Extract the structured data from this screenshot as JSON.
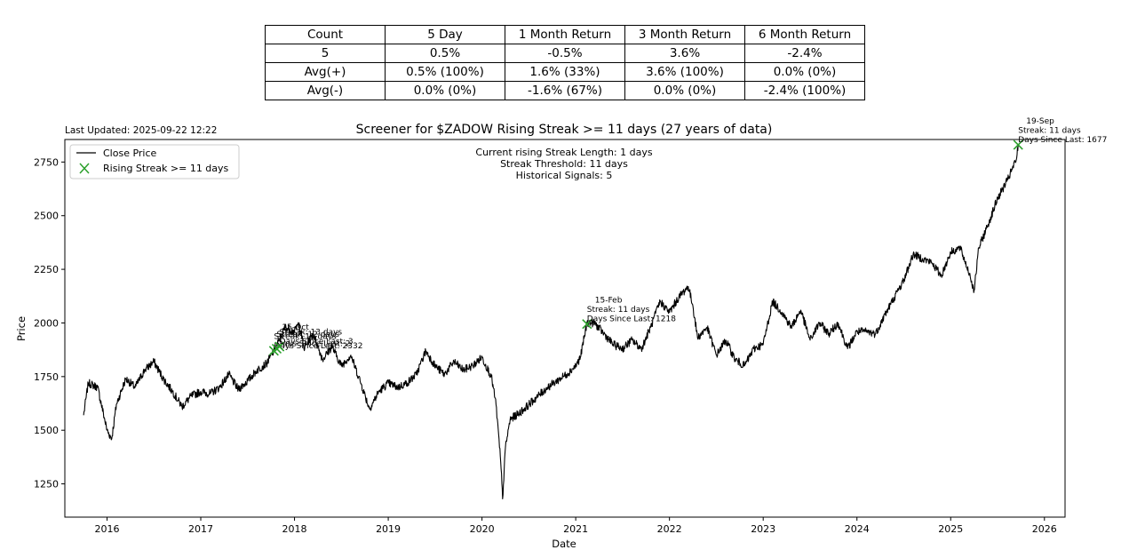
{
  "table": {
    "headers": [
      "Count",
      "5 Day",
      "1 Month Return",
      "3 Month Return",
      "6 Month Return"
    ],
    "rows": [
      [
        "5",
        "0.5%",
        "-0.5%",
        "3.6%",
        "-2.4%"
      ],
      [
        "Avg(+)",
        "0.5% (100%)",
        "1.6% (33%)",
        "3.6% (100%)",
        "0.0% (0%)"
      ],
      [
        "Avg(-)",
        "0.0% (0%)",
        "-1.6% (67%)",
        "0.0% (0%)",
        "-2.4% (100%)"
      ]
    ]
  },
  "last_updated": "Last Updated: 2025-09-22 12:22",
  "chart_data": {
    "type": "line",
    "title": "Screener for $ZADOW Rising Streak >= 11 days (27 years of data)",
    "xlabel": "Date",
    "ylabel": "Price",
    "xlim": [
      2015.55,
      2026.22
    ],
    "ylim": [
      1095,
      2855
    ],
    "x_ticks": [
      "2016",
      "2017",
      "2018",
      "2019",
      "2020",
      "2021",
      "2022",
      "2023",
      "2024",
      "2025",
      "2026"
    ],
    "y_ticks": [
      1250,
      1500,
      1750,
      2000,
      2250,
      2500,
      2750
    ],
    "legend": {
      "placement": "upper-left",
      "entries": [
        "Close Price",
        "Rising Streak >= 11 days"
      ]
    },
    "info_box": [
      "Current rising Streak Length: 1 days",
      "Streak Threshold: 11 days",
      "Historical Signals: 5"
    ],
    "colors": {
      "line": "#000000",
      "signal": "#2ca02c"
    },
    "series": [
      {
        "name": "Close Price",
        "x": [
          2015.75,
          2015.8,
          2015.9,
          2016.0,
          2016.05,
          2016.1,
          2016.2,
          2016.3,
          2016.4,
          2016.5,
          2016.6,
          2016.7,
          2016.8,
          2016.9,
          2017.0,
          2017.1,
          2017.2,
          2017.3,
          2017.4,
          2017.5,
          2017.6,
          2017.7,
          2017.78,
          2017.85,
          2017.9,
          2018.0,
          2018.05,
          2018.1,
          2018.2,
          2018.3,
          2018.4,
          2018.5,
          2018.6,
          2018.7,
          2018.8,
          2018.9,
          2019.0,
          2019.1,
          2019.2,
          2019.3,
          2019.4,
          2019.5,
          2019.6,
          2019.7,
          2019.8,
          2019.9,
          2020.0,
          2020.1,
          2020.15,
          2020.2,
          2020.22,
          2020.25,
          2020.3,
          2020.4,
          2020.5,
          2020.6,
          2020.7,
          2020.8,
          2020.9,
          2021.0,
          2021.05,
          2021.12,
          2021.2,
          2021.3,
          2021.4,
          2021.5,
          2021.6,
          2021.7,
          2021.8,
          2021.9,
          2022.0,
          2022.1,
          2022.2,
          2022.25,
          2022.3,
          2022.4,
          2022.5,
          2022.6,
          2022.7,
          2022.8,
          2022.9,
          2023.0,
          2023.1,
          2023.2,
          2023.3,
          2023.4,
          2023.5,
          2023.6,
          2023.7,
          2023.8,
          2023.9,
          2024.0,
          2024.1,
          2024.2,
          2024.3,
          2024.4,
          2024.5,
          2024.6,
          2024.7,
          2024.8,
          2024.9,
          2025.0,
          2025.1,
          2025.2,
          2025.25,
          2025.3,
          2025.4,
          2025.5,
          2025.6,
          2025.7,
          2025.72
        ],
        "values": [
          1570,
          1720,
          1700,
          1500,
          1460,
          1620,
          1740,
          1700,
          1780,
          1820,
          1740,
          1680,
          1610,
          1660,
          1680,
          1670,
          1700,
          1760,
          1690,
          1730,
          1780,
          1810,
          1870,
          1930,
          1980,
          1960,
          2000,
          1880,
          1950,
          1830,
          1890,
          1800,
          1850,
          1730,
          1600,
          1680,
          1720,
          1700,
          1720,
          1760,
          1870,
          1800,
          1760,
          1820,
          1780,
          1800,
          1840,
          1750,
          1620,
          1350,
          1180,
          1420,
          1550,
          1580,
          1620,
          1660,
          1700,
          1730,
          1760,
          1800,
          1840,
          2000,
          2000,
          1950,
          1900,
          1880,
          1920,
          1880,
          1980,
          2100,
          2050,
          2120,
          2170,
          2080,
          1930,
          1980,
          1850,
          1920,
          1830,
          1800,
          1880,
          1900,
          2100,
          2050,
          1980,
          2060,
          1920,
          2000,
          1950,
          2000,
          1880,
          1960,
          1960,
          1950,
          2040,
          2120,
          2200,
          2320,
          2300,
          2280,
          2220,
          2330,
          2350,
          2230,
          2150,
          2350,
          2460,
          2580,
          2660,
          2760,
          2830
        ]
      }
    ],
    "signals": [
      {
        "x": 2017.78,
        "y": 1870,
        "label": [
          "15-Oct",
          "Streak: 11 days",
          "Days Since Last: 2332"
        ]
      },
      {
        "x": 2017.81,
        "y": 1880,
        "label": [
          "",
          "Streak: 12 days",
          "Days Since Last: 2"
        ]
      },
      {
        "x": 2017.84,
        "y": 1890,
        "label": [
          "",
          "Streak: 13 days",
          "Days Since Last: 3"
        ]
      },
      {
        "x": 2021.12,
        "y": 1995,
        "label": [
          "15-Feb",
          "Streak: 11 days",
          "Days Since Last: 1218"
        ]
      },
      {
        "x": 2025.72,
        "y": 2830,
        "label": [
          "19-Sep",
          "Streak: 11 days",
          "Days Since Last: 1677"
        ]
      }
    ]
  }
}
